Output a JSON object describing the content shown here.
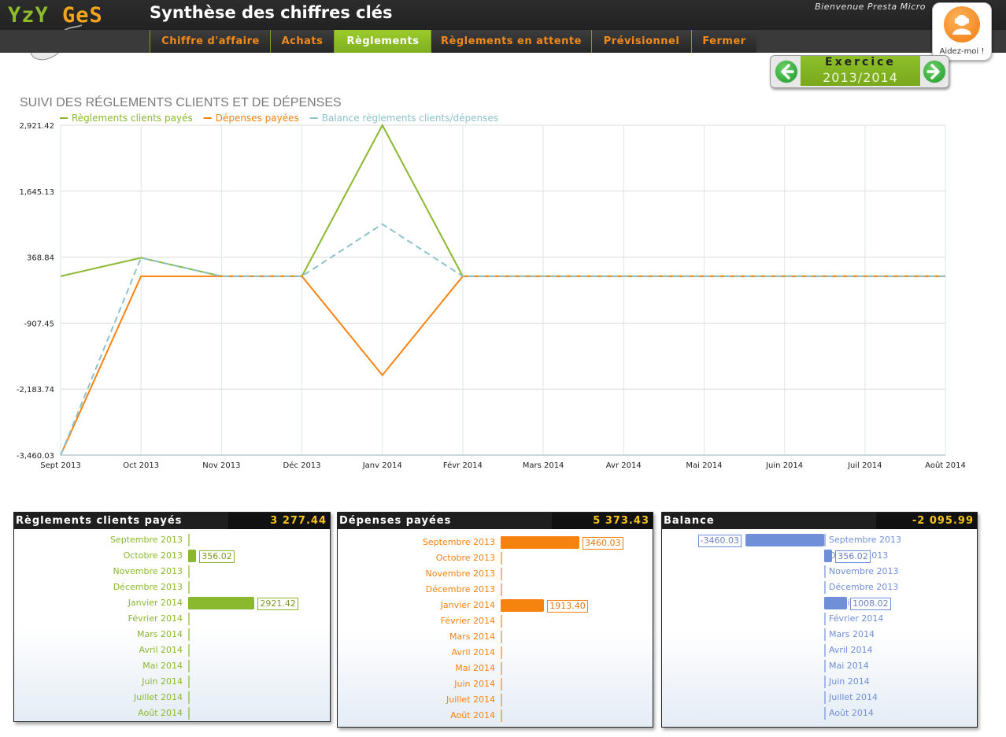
{
  "app": {
    "logo_part1": "YzY",
    "logo_part2": "GeS",
    "title": "Synthèse des chiffres clés",
    "welcome": "Bienvenue Presta Micro"
  },
  "tabs": [
    {
      "name": "tab-chiffre-affaire",
      "label": "Chiffre d'affaire",
      "active": false
    },
    {
      "name": "tab-achats",
      "label": "Achats",
      "active": false
    },
    {
      "name": "tab-reglements",
      "label": "Règlements",
      "active": true
    },
    {
      "name": "tab-reglements-attente",
      "label": "Règlements en attente",
      "active": false
    },
    {
      "name": "tab-previsionnel",
      "label": "Prévisionnel",
      "active": false
    },
    {
      "name": "tab-fermer",
      "label": "Fermer",
      "active": false
    }
  ],
  "help": {
    "label": "Aidez-moi !",
    "icon": "helper-icon"
  },
  "exercice": {
    "label": "Exercice",
    "value": "2013/2014",
    "prev_icon": "arrow-left-icon",
    "next_icon": "arrow-right-icon"
  },
  "colors": {
    "green": "#8ab82e",
    "orange": "#f6820f",
    "blue": "#8ec2cc",
    "bar_blue": "#6f8fd8",
    "accent": "#f7c21b"
  },
  "chart_data": {
    "type": "line",
    "title": "SUIVI DES RÉGLEMENTS CLIENTS ET DE DÉPENSES",
    "categories": [
      "Sept 2013",
      "Oct 2013",
      "Nov 2013",
      "Déc 2013",
      "Janv 2014",
      "Févr 2014",
      "Mars 2014",
      "Avr 2014",
      "Mai 2014",
      "Juin 2014",
      "Juil 2014",
      "Août 2014"
    ],
    "y_ticks": [
      "2,921.42",
      "1,645.13",
      "368.84",
      "-907.45",
      "-2,183.74",
      "-3,460.03"
    ],
    "ylim": [
      -3460.03,
      2921.42
    ],
    "grid": true,
    "legend_position": "top-left",
    "series": [
      {
        "name": "Règlements clients payés",
        "color": "#8ab82e",
        "dash": false,
        "values": [
          0,
          356.02,
          0,
          0,
          2921.42,
          0,
          0,
          0,
          0,
          0,
          0,
          0
        ]
      },
      {
        "name": "Dépenses payées",
        "color": "#f6820f",
        "dash": false,
        "values": [
          -3460.03,
          0,
          0,
          0,
          -1913.4,
          0,
          0,
          0,
          0,
          0,
          0,
          0
        ]
      },
      {
        "name": "Balance règlements clients/dépenses",
        "color": "#8ec2cc",
        "dash": true,
        "values": [
          -3460.03,
          356.02,
          0,
          0,
          1008.02,
          0,
          0,
          0,
          0,
          0,
          0,
          0
        ]
      }
    ]
  },
  "panels": [
    {
      "name": "panel-reglements",
      "title": "Règlements clients payés",
      "total": "3 277.44",
      "color": "#8ab82e",
      "items": [
        {
          "label": "Septembre 2013",
          "value": "",
          "amount": 0
        },
        {
          "label": "Octobre 2013",
          "value": "356.02",
          "amount": 356.02
        },
        {
          "label": "Novembre 2013",
          "value": "",
          "amount": 0
        },
        {
          "label": "Décembre 2013",
          "value": "",
          "amount": 0
        },
        {
          "label": "Janvier 2014",
          "value": "2921.42",
          "amount": 2921.42
        },
        {
          "label": "Février 2014",
          "value": "",
          "amount": 0
        },
        {
          "label": "Mars 2014",
          "value": "",
          "amount": 0
        },
        {
          "label": "Avril 2014",
          "value": "",
          "amount": 0
        },
        {
          "label": "Mai 2014",
          "value": "",
          "amount": 0
        },
        {
          "label": "Juin 2014",
          "value": "",
          "amount": 0
        },
        {
          "label": "Juillet 2014",
          "value": "",
          "amount": 0
        },
        {
          "label": "Août 2014",
          "value": "",
          "amount": 0
        }
      ]
    },
    {
      "name": "panel-depenses",
      "title": "Dépenses payées",
      "total": "5 373.43",
      "color": "#f6820f",
      "items": [
        {
          "label": "Septembre 2013",
          "value": "3460.03",
          "amount": 3460.03
        },
        {
          "label": "Octobre 2013",
          "value": "",
          "amount": 0
        },
        {
          "label": "Novembre 2013",
          "value": "",
          "amount": 0
        },
        {
          "label": "Décembre 2013",
          "value": "",
          "amount": 0
        },
        {
          "label": "Janvier 2014",
          "value": "1913.40",
          "amount": 1913.4
        },
        {
          "label": "Février 2014",
          "value": "",
          "amount": 0
        },
        {
          "label": "Mars 2014",
          "value": "",
          "amount": 0
        },
        {
          "label": "Avril 2014",
          "value": "",
          "amount": 0
        },
        {
          "label": "Mai 2014",
          "value": "",
          "amount": 0
        },
        {
          "label": "Juin 2014",
          "value": "",
          "amount": 0
        },
        {
          "label": "Juillet 2014",
          "value": "",
          "amount": 0
        },
        {
          "label": "Août 2014",
          "value": "",
          "amount": 0
        }
      ]
    },
    {
      "name": "panel-balance",
      "title": "Balance",
      "total": "-2 095.99",
      "color": "#6f8fd8",
      "items": [
        {
          "label": "Septembre 2013",
          "value": "-3460.03",
          "amount": -3460.03
        },
        {
          "label": "Octobre 2013",
          "value": "356.02",
          "amount": 356.02
        },
        {
          "label": "Novembre 2013",
          "value": "",
          "amount": 0
        },
        {
          "label": "Décembre 2013",
          "value": "",
          "amount": 0
        },
        {
          "label": "Janvier 2014",
          "value": "1008.02",
          "amount": 1008.02
        },
        {
          "label": "Février 2014",
          "value": "",
          "amount": 0
        },
        {
          "label": "Mars 2014",
          "value": "",
          "amount": 0
        },
        {
          "label": "Avril 2014",
          "value": "",
          "amount": 0
        },
        {
          "label": "Mai 2014",
          "value": "",
          "amount": 0
        },
        {
          "label": "Juin 2014",
          "value": "",
          "amount": 0
        },
        {
          "label": "Juillet 2014",
          "value": "",
          "amount": 0
        },
        {
          "label": "Août 2014",
          "value": "",
          "amount": 0
        }
      ]
    }
  ]
}
